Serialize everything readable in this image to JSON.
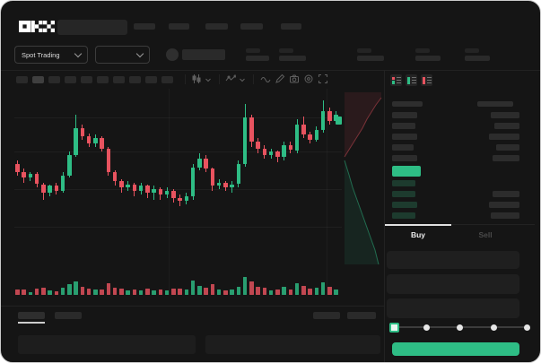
{
  "brand": {
    "name": "OKX"
  },
  "subheader": {
    "market_selector_label": "Spot Trading"
  },
  "toolbar": {
    "interval_button_count": 10,
    "icons": [
      "candle-style-icon",
      "chevron-down-icon",
      "indicators-icon",
      "chevron-down-icon",
      "line-tool-icon",
      "draw-tool-icon",
      "camera-icon",
      "chart-settings-icon",
      "fullscreen-icon"
    ]
  },
  "orderbook": {
    "mode_icons": [
      "orderbook-both-icon",
      "orderbook-bids-icon",
      "orderbook-asks-icon"
    ],
    "asks_bar_widths": [
      {
        "p": 28,
        "a": 32
      },
      {
        "p": 26,
        "a": 28
      },
      {
        "p": 28,
        "a": 34
      },
      {
        "p": 24,
        "a": 26
      },
      {
        "p": 28,
        "a": 30
      }
    ],
    "bids_bar_widths": [
      {
        "p": 26,
        "a": 0
      },
      {
        "p": 26,
        "a": 30
      },
      {
        "p": 28,
        "a": 34
      },
      {
        "p": 26,
        "a": 32
      }
    ]
  },
  "trade_panel": {
    "buy_tab": "Buy",
    "sell_tab": "Sell",
    "active_tab": "Buy",
    "input_count": 3,
    "slider": {
      "stops": [
        0,
        25,
        50,
        75,
        100
      ],
      "selected_stop": 0
    }
  },
  "colors": {
    "window_bg": "#151515",
    "up_green": "#2ebd85",
    "down_red": "#e8535f",
    "bid_bar_bg": "#1d3b2e",
    "last_price_bg": "#2ebd85",
    "buy_button_bg": "#2ebd85",
    "depth_ask_fill": "rgba(232,83,95,0.10)",
    "depth_bid_fill": "rgba(46,189,133,0.10)"
  },
  "chart_data": {
    "type": "candlestick",
    "title": "",
    "note": "no axis labels visible; values normalized 0-100 estimated from pixel positions",
    "price_range": [
      0,
      100
    ],
    "candles": [
      [
        57,
        59,
        50,
        52
      ],
      [
        52,
        54,
        46,
        49
      ],
      [
        49,
        52,
        47,
        51
      ],
      [
        51,
        52,
        43,
        45
      ],
      [
        45,
        46,
        36,
        40
      ],
      [
        40,
        45,
        38,
        44
      ],
      [
        44,
        46,
        39,
        41
      ],
      [
        41,
        52,
        40,
        50
      ],
      [
        50,
        64,
        49,
        62
      ],
      [
        62,
        86,
        61,
        78
      ],
      [
        78,
        80,
        71,
        73
      ],
      [
        73,
        75,
        67,
        69
      ],
      [
        69,
        74,
        67,
        72
      ],
      [
        72,
        73,
        64,
        66
      ],
      [
        66,
        67,
        50,
        52
      ],
      [
        52,
        53,
        44,
        47
      ],
      [
        47,
        48,
        40,
        43
      ],
      [
        43,
        47,
        41,
        45
      ],
      [
        45,
        46,
        38,
        41
      ],
      [
        41,
        46,
        39,
        44
      ],
      [
        44,
        45,
        37,
        40
      ],
      [
        40,
        44,
        36,
        42
      ],
      [
        42,
        43,
        36,
        39
      ],
      [
        39,
        43,
        37,
        41
      ],
      [
        41,
        42,
        34,
        37
      ],
      [
        37,
        39,
        32,
        35
      ],
      [
        35,
        40,
        33,
        38
      ],
      [
        38,
        57,
        36,
        55
      ],
      [
        55,
        63,
        53,
        60
      ],
      [
        60,
        62,
        52,
        54
      ],
      [
        54,
        55,
        41,
        44
      ],
      [
        44,
        48,
        42,
        46
      ],
      [
        46,
        47,
        41,
        43
      ],
      [
        43,
        47,
        40,
        45
      ],
      [
        45,
        59,
        43,
        57
      ],
      [
        57,
        92,
        55,
        84
      ],
      [
        84,
        86,
        67,
        70
      ],
      [
        70,
        72,
        63,
        66
      ],
      [
        66,
        68,
        60,
        62
      ],
      [
        62,
        66,
        60,
        64
      ],
      [
        64,
        65,
        58,
        61
      ],
      [
        61,
        70,
        59,
        68
      ],
      [
        68,
        70,
        63,
        65
      ],
      [
        65,
        83,
        63,
        80
      ],
      [
        80,
        85,
        72,
        74
      ],
      [
        74,
        76,
        69,
        71
      ],
      [
        71,
        79,
        70,
        77
      ],
      [
        77,
        94,
        75,
        88
      ],
      [
        88,
        90,
        80,
        82
      ],
      [
        82,
        88,
        81,
        86
      ]
    ],
    "volumes": [
      30,
      28,
      12,
      35,
      40,
      25,
      20,
      38,
      55,
      70,
      45,
      35,
      30,
      28,
      60,
      40,
      35,
      22,
      30,
      26,
      32,
      24,
      28,
      22,
      35,
      35,
      28,
      75,
      50,
      40,
      55,
      30,
      25,
      28,
      45,
      95,
      70,
      45,
      40,
      26,
      30,
      42,
      28,
      60,
      50,
      32,
      36,
      65,
      42,
      30
    ]
  }
}
